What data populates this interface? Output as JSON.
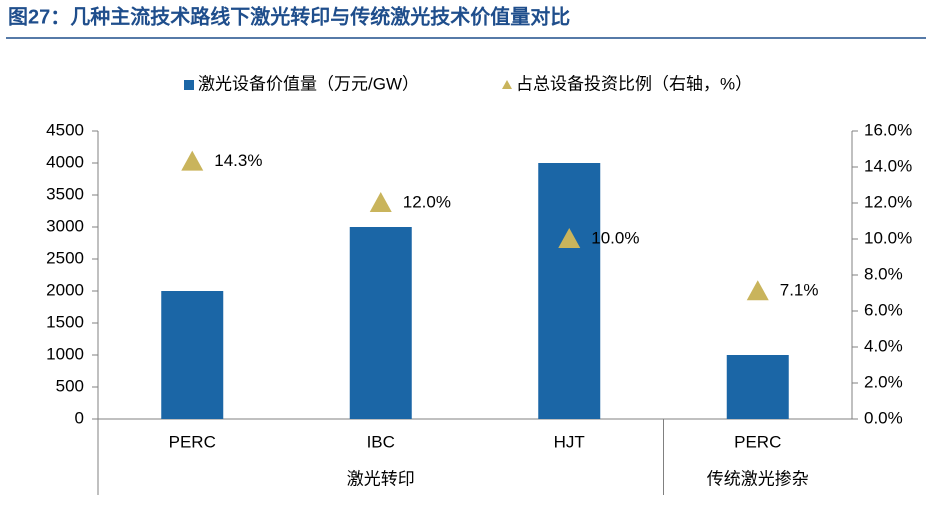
{
  "chart_data": {
    "type": "bar",
    "title": "图27：几种主流技术路线下激光转印与传统激光技术价值量对比",
    "categories": [
      "PERC",
      "IBC",
      "HJT",
      "PERC"
    ],
    "groups": [
      "激光转印",
      "激光转印",
      "激光转印",
      "传统激光掺杂"
    ],
    "series": [
      {
        "name": "激光设备价值量（万元/GW）",
        "type": "bar",
        "color": "#1b66a6",
        "values": [
          2000,
          3000,
          4000,
          1000
        ]
      },
      {
        "name": "占总设备投资比例（右轴，%）",
        "type": "scatter",
        "axis": "y2",
        "color": "#c9b45c",
        "values": [
          14.3,
          12.0,
          10.0,
          7.1
        ],
        "value_labels": [
          "14.3%",
          "12.0%",
          "10.0%",
          "7.1%"
        ]
      }
    ],
    "ylim": [
      0,
      4500
    ],
    "yticks": [
      0,
      500,
      1000,
      1500,
      2000,
      2500,
      3000,
      3500,
      4000,
      4500
    ],
    "y2lim": [
      0,
      16
    ],
    "y2ticks": [
      {
        "value": 0,
        "label": "0.0%"
      },
      {
        "value": 2,
        "label": "2.0%"
      },
      {
        "value": 4,
        "label": "4.0%"
      },
      {
        "value": 6,
        "label": "6.0%"
      },
      {
        "value": 8,
        "label": "8.0%"
      },
      {
        "value": 10,
        "label": "10.0%"
      },
      {
        "value": 12,
        "label": "12.0%"
      },
      {
        "value": 14,
        "label": "14.0%"
      },
      {
        "value": 16,
        "label": "16.0%"
      }
    ],
    "legend": "top",
    "grid": false
  }
}
